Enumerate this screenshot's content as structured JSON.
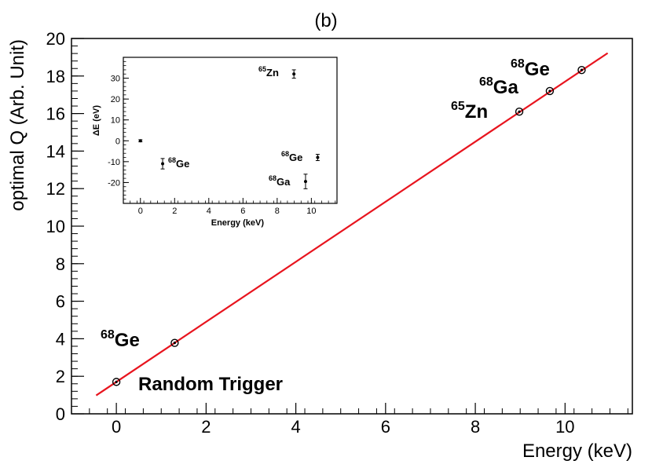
{
  "chart_data": [
    {
      "id": "main",
      "type": "scatter",
      "title": "(b)",
      "xlabel": "Energy (keV)",
      "ylabel": "optimal Q (Arb. Unit)",
      "xlim": [
        -1,
        11.5
      ],
      "ylim": [
        0,
        20
      ],
      "xticks": [
        0,
        2,
        4,
        6,
        8,
        10
      ],
      "yticks": [
        0,
        2,
        4,
        6,
        8,
        10,
        12,
        14,
        16,
        18,
        20
      ],
      "grid": false,
      "points": [
        {
          "x": 0.0,
          "y": 1.7
        },
        {
          "x": 1.3,
          "y": 3.78
        },
        {
          "x": 8.98,
          "y": 16.1
        },
        {
          "x": 9.66,
          "y": 17.2
        },
        {
          "x": 10.37,
          "y": 18.32
        }
      ],
      "fit_line": {
        "x": [
          -0.45,
          10.95
        ],
        "y": [
          0.98,
          19.22
        ],
        "color": "#e8141e"
      },
      "annotations": [
        {
          "sup": "68",
          "text": "Ge",
          "x": 1.3,
          "y": 3.78
        },
        {
          "sup": "",
          "text": "Random Trigger",
          "x": 0.0,
          "y": 1.7
        },
        {
          "sup": "65",
          "text": "Zn",
          "x": 8.98,
          "y": 16.1
        },
        {
          "sup": "68",
          "text": "Ga",
          "x": 9.66,
          "y": 17.2
        },
        {
          "sup": "68",
          "text": "Ge",
          "x": 10.37,
          "y": 18.32
        }
      ]
    },
    {
      "id": "inset",
      "type": "scatter",
      "title": "",
      "xlabel": "Energy (keV)",
      "ylabel": "ΔE (eV)",
      "xlim": [
        -1,
        11.5
      ],
      "ylim": [
        -30,
        40
      ],
      "xticks": [
        0,
        2,
        4,
        6,
        8,
        10
      ],
      "yticks": [
        -20,
        -10,
        0,
        10,
        20,
        30
      ],
      "grid": false,
      "points": [
        {
          "x": 0.0,
          "y": 0.0,
          "err": 0.5
        },
        {
          "x": 1.3,
          "y": -11.0,
          "err": 2.5
        },
        {
          "x": 8.98,
          "y": 32.0,
          "err": 2.0
        },
        {
          "x": 9.66,
          "y": -19.5,
          "err": 3.5
        },
        {
          "x": 10.37,
          "y": -8.0,
          "err": 1.5
        }
      ],
      "annotations": [
        {
          "sup": "68",
          "text": "Ge",
          "x": 1.3,
          "y": -11.0
        },
        {
          "sup": "65",
          "text": "Zn",
          "x": 8.98,
          "y": 32.0
        },
        {
          "sup": "68",
          "text": "Ge",
          "x": 10.37,
          "y": -8.0
        },
        {
          "sup": "68",
          "text": "Ga",
          "x": 9.66,
          "y": -19.5
        }
      ]
    }
  ]
}
